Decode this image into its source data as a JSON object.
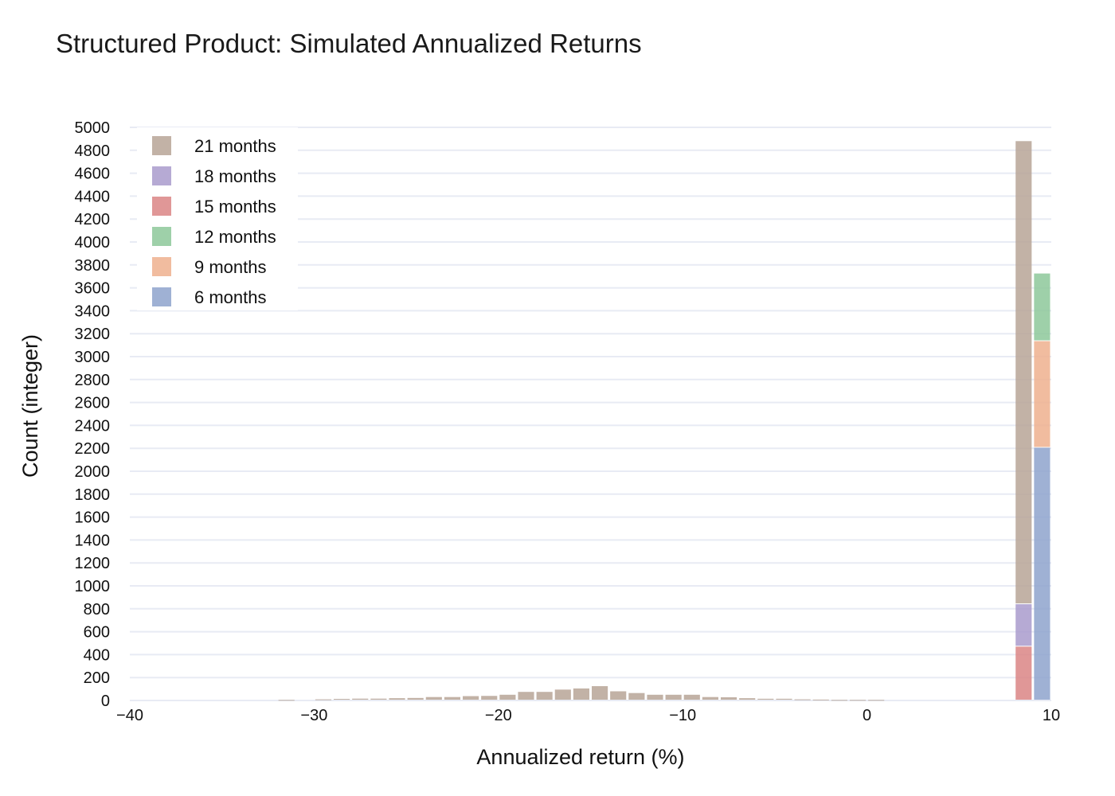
{
  "chart_data": {
    "type": "bar",
    "title": "Structured Product: Simulated Annualized Returns",
    "xlabel": "Annualized return (%)",
    "ylabel": "Count (integer)",
    "xlim": [
      -40,
      10
    ],
    "ylim": [
      0,
      5000
    ],
    "x_ticks": [
      "−40",
      "−30",
      "−20",
      "−10",
      "0",
      "10"
    ],
    "y_ticks": [
      "0",
      "200",
      "400",
      "600",
      "800",
      "1000",
      "1200",
      "1400",
      "1600",
      "1800",
      "2000",
      "2200",
      "2400",
      "2600",
      "2800",
      "3000",
      "3200",
      "3400",
      "3600",
      "3800",
      "4000",
      "4200",
      "4400",
      "4600",
      "4800",
      "5000"
    ],
    "grid": true,
    "legend_position": "top-left",
    "bin_width": 1,
    "series": [
      {
        "name": "21 months",
        "color": "#b7a596",
        "x": [
          -31.5,
          -29.5,
          -28.5,
          -27.5,
          -26.5,
          -25.5,
          -24.5,
          -23.5,
          -22.5,
          -21.5,
          -20.5,
          -19.5,
          -18.5,
          -17.5,
          -16.5,
          -15.5,
          -14.5,
          -13.5,
          -12.5,
          -11.5,
          -10.5,
          -9.5,
          -8.5,
          -7.5,
          -6.5,
          -5.5,
          -4.5,
          -3.5,
          -2.5,
          -1.5,
          -0.5,
          0.5,
          8.5
        ],
        "values": [
          5,
          10,
          14,
          16,
          16,
          20,
          22,
          30,
          30,
          38,
          40,
          50,
          75,
          75,
          95,
          105,
          125,
          80,
          65,
          50,
          50,
          50,
          30,
          28,
          20,
          15,
          15,
          10,
          8,
          5,
          5,
          5,
          4040
        ]
      },
      {
        "name": "18 months",
        "color": "#a99bcd",
        "x": [
          8.5
        ],
        "values": [
          370
        ]
      },
      {
        "name": "15 months",
        "color": "#da8585",
        "x": [
          8.5
        ],
        "values": [
          470
        ]
      },
      {
        "name": "12 months",
        "color": "#8dc89a",
        "x": [
          9.5
        ],
        "values": [
          590
        ]
      },
      {
        "name": "9 months",
        "color": "#efb08e",
        "x": [
          9.5
        ],
        "values": [
          930
        ]
      },
      {
        "name": "6 months",
        "color": "#8ea3cc",
        "x": [
          9.5
        ],
        "values": [
          2205
        ]
      }
    ],
    "stack_order": [
      "15 months",
      "18 months",
      "21 months",
      "6 months",
      "9 months",
      "12 months"
    ],
    "legend_order": [
      "21 months",
      "18 months",
      "15 months",
      "12 months",
      "9 months",
      "6 months"
    ]
  }
}
